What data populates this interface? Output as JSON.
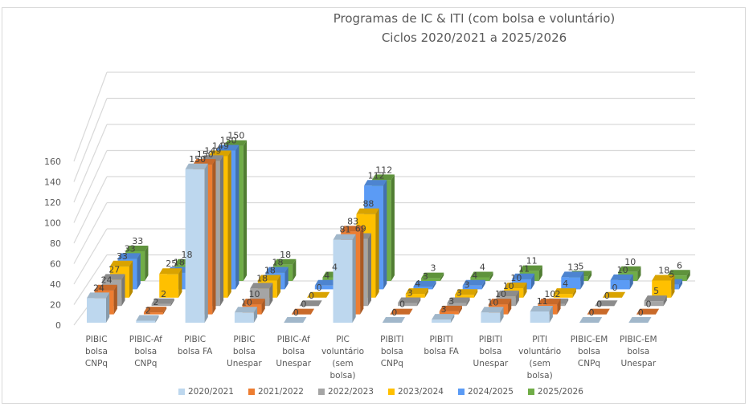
{
  "chart_data": {
    "type": "bar",
    "variant": "3d-clustered-column",
    "title": "Programas de IC & ITI (com bolsa e voluntário)",
    "subtitle": "Ciclos 2020/2021 a 2025/2026",
    "xlabel": "",
    "ylabel": "",
    "ylim": [
      0,
      160
    ],
    "yticks": [
      0,
      20,
      40,
      60,
      80,
      100,
      120,
      140,
      160
    ],
    "grid": true,
    "legend_position": "bottom",
    "categories": [
      "PIBIC\nbolsa\nCNPq",
      "PIBIC-Af\nbolsa\nCNPq",
      "PIBIC\nbolsa FA",
      "PIBIC\nbolsa\nUnespar",
      "PIBIC-Af\nbolsa\nUnespar",
      "PIC\nvoluntário\n(sem\nbolsa)",
      "PIBITI\nbolsa\nCNPq",
      "PIBITI\nbolsa FA",
      "PIBITI\nbolsa\nUnespar",
      "PITI\nvoluntário\n(sem\nbolsa)",
      "PIBIC-EM\nbolsa\nCNPq",
      "PIBIC-EM\nbolsa\nUnespar"
    ],
    "series": [
      {
        "name": "2020/2021",
        "color": "#bdd7ee",
        "values": [
          24,
          2,
          150,
          10,
          0,
          81,
          0,
          3,
          10,
          11,
          0,
          0
        ]
      },
      {
        "name": "2021/2022",
        "color": "#ed7d31",
        "values": [
          24,
          2,
          150,
          10,
          0,
          83,
          0,
          3,
          10,
          10,
          0,
          0
        ]
      },
      {
        "name": "2022/2023",
        "color": "#a5a5a5",
        "values": [
          27,
          2,
          149,
          18,
          0,
          69,
          3,
          3,
          10,
          2,
          0,
          5
        ]
      },
      {
        "name": "2023/2024",
        "color": "#ffc000",
        "values": [
          33,
          25,
          149,
          18,
          0,
          88,
          4,
          3,
          10,
          4,
          0,
          18
        ]
      },
      {
        "name": "2024/2025",
        "color": "#5b9bf5",
        "values": [
          33,
          18,
          150,
          18,
          4,
          112,
          3,
          4,
          11,
          13,
          10,
          5
        ]
      },
      {
        "name": "2025/2026",
        "color": "#70ad47",
        "values": [
          33,
          18,
          150,
          18,
          4,
          112,
          3,
          4,
          11,
          5,
          10,
          6
        ]
      }
    ]
  }
}
